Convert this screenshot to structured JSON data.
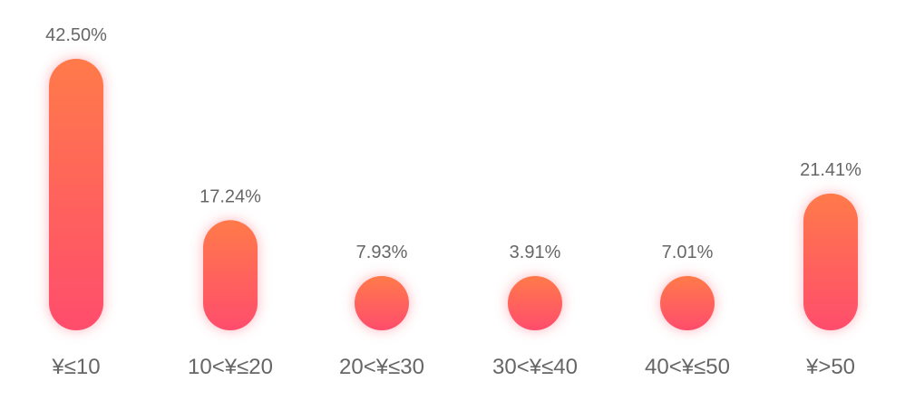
{
  "chart_data": {
    "type": "bar",
    "title": "",
    "xlabel": "",
    "ylabel": "",
    "categories": [
      "¥≤10",
      "10<¥≤20",
      "20<¥≤30",
      "30<¥≤40",
      "40<¥≤50",
      "¥>50"
    ],
    "values": [
      42.5,
      17.24,
      7.93,
      3.91,
      7.01,
      21.41
    ],
    "value_labels": [
      "42.50%",
      "17.24%",
      "7.93%",
      "3.91%",
      "7.01%",
      "21.41%"
    ],
    "unit": "%",
    "ylim": [
      0,
      42.5
    ],
    "grid": false,
    "legend": "none",
    "colors": {
      "bar_top": "#ff7a4a",
      "bar_bottom": "#ff4d6d",
      "glow": "#ff5a70",
      "label_text": "#666666"
    }
  }
}
